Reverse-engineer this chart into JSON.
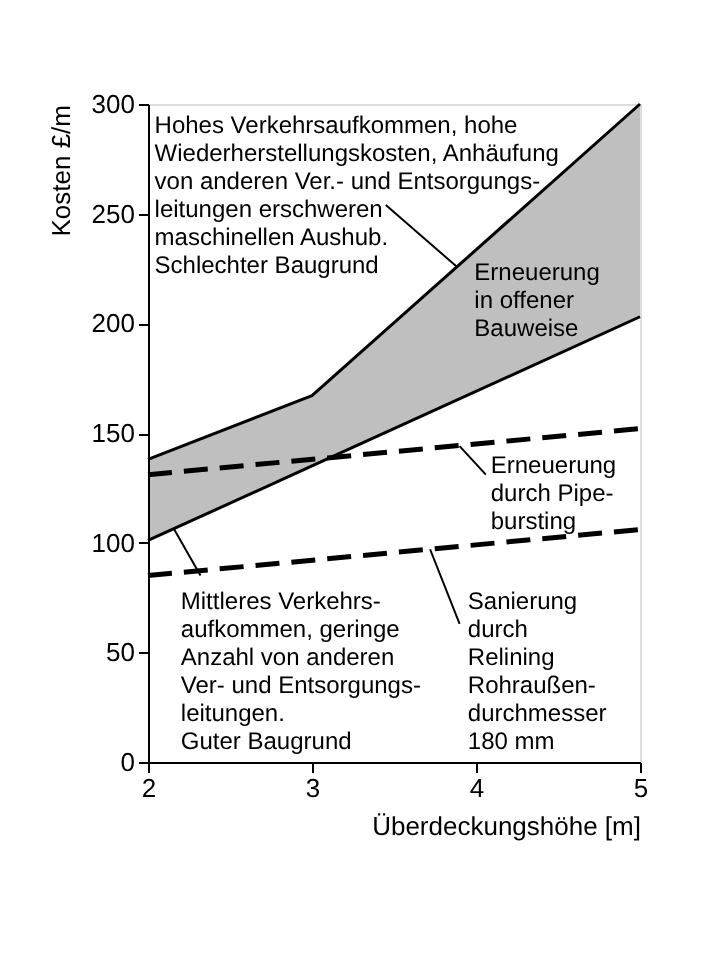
{
  "chart_data": {
    "type": "line",
    "xlabel": "Überdeckungshöhe [m]",
    "ylabel": "Kosten £/m",
    "xlim": [
      2,
      5
    ],
    "xticks": [
      2,
      3,
      4,
      5
    ],
    "ylim": [
      0,
      300
    ],
    "yticks": [
      0,
      50,
      100,
      150,
      200,
      250,
      300
    ],
    "grid": false,
    "series": [
      {
        "color": "#000000",
        "line_style": "solid",
        "x": [
          2,
          3,
          5
        ],
        "values": [
          138,
          167,
          300
        ],
        "lower": [
          101,
          135,
          203
        ],
        "upper": [
          138,
          167,
          300
        ]
      },
      {
        "color": "#000000",
        "line_style": "solid",
        "x": [
          2,
          3,
          5
        ],
        "values": [
          101,
          135,
          203
        ]
      },
      {
        "color": "#000000",
        "line_style": "dashed",
        "x": [
          2,
          5
        ],
        "values": [
          131,
          152
        ]
      },
      {
        "color": "#000000",
        "line_style": "dashed",
        "x": [
          2,
          5
        ],
        "values": [
          85,
          106
        ]
      }
    ],
    "annotations": [
      {
        "text": "Hohes Verkehrsaufkommen, hohe\nWiederherstellungskosten, Anhäufung\nvon anderen Ver.- und Entsorgungs-\nleitungen erschweren\nmaschinellen Aushub.\nSchlechter Baugrund",
        "x": 3.88,
        "y": 226
      },
      "Erneuerung\nin offener\nBauweise",
      {
        "text": "Erneuerung\ndurch Pipe-\nbursting",
        "x": 3.9,
        "y": 144
      },
      {
        "text": "Mittleres Verkehrs-\naufkommen, geringe\nAnzahl von anderen\nVer- und Entsorgungs-\nleitungen.\nGuter Baugrund",
        "x": 2.16,
        "y": 106
      },
      {
        "text": "Sanierung\ndurch\nRelining\nRohraußen-\ndurchmesser\n180 mm",
        "x": 3.72,
        "y": 97
      }
    ]
  }
}
